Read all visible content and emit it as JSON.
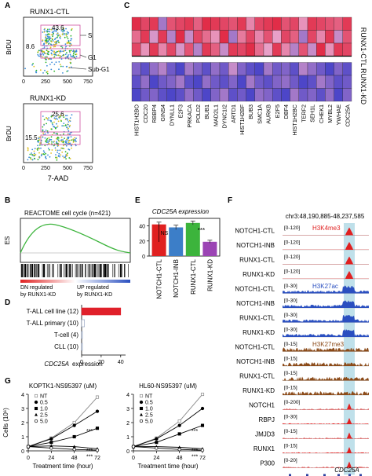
{
  "panels": {
    "A": {
      "letter": "A",
      "top_title": "RUNX1-CTL",
      "bottom_title": "RUNX1-KD",
      "ylabel": "BrDU",
      "xlabel": "7-AAD",
      "top_gates": {
        "s_pct": "43.6",
        "g1_pct": "8.6"
      },
      "bottom_gates": {
        "s_pct": "25.6",
        "g1_pct": "15.5"
      },
      "phase_labels": [
        "S",
        "G1",
        "Sub-G1"
      ],
      "xticks": [
        "0",
        "250",
        "500",
        "750"
      ]
    },
    "B": {
      "letter": "B",
      "title": "REACTOME cell cycle (n=421)",
      "ylabel": "ES",
      "left_label": [
        "DN regulated",
        "by RUNX1-KD"
      ],
      "right_label": [
        "UP regulated",
        "by RUNX1-KD"
      ]
    },
    "C": {
      "letter": "C",
      "genes": [
        "HIST1H2BO",
        "CDC20",
        "RBBP4",
        "GINS4",
        "DYNLL1",
        "E2F3",
        "PRKACA",
        "POLD2",
        "BUB1",
        "MAD2L1",
        "DYNC1I2",
        "ARTD1",
        "HIST1H2BF",
        "BUB3",
        "SMC1A",
        "AURKB",
        "E2F5",
        "DBF4",
        "HIST1H2BC",
        "TERF2",
        "SEH1L",
        "CHEK1",
        "MYBL2",
        "YWHAE",
        "CDC25A"
      ],
      "row_groups": [
        "RUNX1-CTL",
        "RUNX1-KD"
      ],
      "colors": {
        "high": "#e0203a",
        "mid": "#e8a0c8",
        "low": "#3c3cc8"
      },
      "values": [
        [
          0.95,
          0.85,
          0.9,
          0.3,
          0.8,
          0.85,
          0.9,
          0.75,
          0.95,
          0.9,
          0.85,
          0.8,
          0.9,
          0.6,
          0.85,
          0.9,
          0.95,
          0.8,
          0.85,
          0.55,
          0.9,
          0.85,
          0.8,
          0.75,
          0.9
        ],
        [
          0.7,
          0.9,
          0.45,
          0.9,
          0.35,
          0.95,
          0.4,
          0.85,
          0.7,
          0.55,
          0.95,
          0.3,
          0.65,
          0.85,
          0.6,
          0.8,
          0.5,
          0.85,
          0.75,
          0.3,
          0.85,
          0.6,
          0.9,
          0.4,
          0.8
        ],
        [
          0.85,
          0.55,
          0.9,
          0.6,
          0.85,
          0.45,
          0.8,
          0.35,
          0.9,
          0.75,
          0.4,
          0.9,
          0.85,
          0.95,
          0.7,
          0.5,
          0.9,
          0.6,
          0.35,
          0.8,
          0.4,
          0.95,
          0.55,
          0.9,
          0.85
        ],
        [
          0.2,
          0.1,
          0.25,
          0.35,
          0.15,
          0.05,
          0.3,
          0.2,
          0.1,
          0.25,
          0.15,
          0.4,
          0.2,
          0.1,
          0.05,
          0.3,
          0.15,
          0.2,
          0.1,
          0.35,
          0.25,
          0.15,
          0.05,
          0.2,
          0.1
        ],
        [
          0.1,
          0.25,
          0.05,
          0.15,
          0.2,
          0.3,
          0.1,
          0.05,
          0.25,
          0.15,
          0.1,
          0.2,
          0.05,
          0.3,
          0.15,
          0.1,
          0.2,
          0.25,
          0.15,
          0.05,
          0.1,
          0.3,
          0.2,
          0.1,
          0.15
        ],
        [
          0.05,
          0.15,
          0.2,
          0.1,
          0.05,
          0.1,
          0.25,
          0.15,
          0.05,
          0.2,
          0.3,
          0.1,
          0.15,
          0.05,
          0.25,
          0.2,
          0.1,
          0.05,
          0.3,
          0.15,
          0.2,
          0.1,
          0.25,
          0.05,
          0.2
        ]
      ]
    },
    "D": {
      "letter": "D",
      "xlabel": [
        "CDC25A",
        "expression"
      ],
      "categories": [
        "T-ALL cell line (12)",
        "T-ALL primary (10)",
        "T-cell (4)",
        "CLL (10)"
      ],
      "values": [
        40,
        3,
        0.8,
        0.5
      ],
      "xticks": [
        "0",
        "20",
        "40"
      ],
      "xlim": [
        0,
        45
      ],
      "bar_color": "#e0202a"
    },
    "E": {
      "letter": "E",
      "title": "CDC25A expression",
      "categories": [
        "NOTCH1-CTL",
        "NOTCH1-INB",
        "RUNX1-CTL",
        "RUNX1-KD"
      ],
      "values": [
        42,
        38,
        44,
        19
      ],
      "errors": [
        3,
        3,
        2.5,
        2
      ],
      "colors": [
        "#e02020",
        "#3c7ec8",
        "#3cb43c",
        "#9b44b4"
      ],
      "ylim": [
        0,
        50
      ],
      "yticks": [
        "0",
        "20",
        "40"
      ],
      "annotations": [
        "NS",
        "***"
      ]
    },
    "F": {
      "letter": "F",
      "locus": "chr3:48,190,885-48,237,585",
      "gene": "CDC25A",
      "tracks": [
        {
          "label": "NOTCH1-CTL",
          "range": "[0-120]",
          "mark": "H3K4me3",
          "color": "#e02020",
          "group": 0
        },
        {
          "label": "NOTCH1-INB",
          "range": "[0-120]",
          "mark": "",
          "color": "#e02020",
          "group": 0
        },
        {
          "label": "RUNX1-CTL",
          "range": "[0-120]",
          "mark": "",
          "color": "#e02020",
          "group": 0
        },
        {
          "label": "RUNX1-KD",
          "range": "[0-120]",
          "mark": "",
          "color": "#e02020",
          "group": 0
        },
        {
          "label": "NOTCH1-CTL",
          "range": "[0-30]",
          "mark": "H3K27ac",
          "color": "#2a4fc0",
          "group": 1
        },
        {
          "label": "NOTCH1-INB",
          "range": "[0-30]",
          "mark": "",
          "color": "#2a4fc0",
          "group": 1
        },
        {
          "label": "RUNX1-CTL",
          "range": "[0-30]",
          "mark": "",
          "color": "#2a4fc0",
          "group": 1
        },
        {
          "label": "RUNX1-KD",
          "range": "[0-30]",
          "mark": "",
          "color": "#2a4fc0",
          "group": 1
        },
        {
          "label": "NOTCH1-CTL",
          "range": "[0-15]",
          "mark": "H3K27me3",
          "color": "#8b4a18",
          "group": 2
        },
        {
          "label": "NOTCH1-INB",
          "range": "[0-15]",
          "mark": "",
          "color": "#8b4a18",
          "group": 2
        },
        {
          "label": "RUNX1-CTL",
          "range": "[0-15]",
          "mark": "",
          "color": "#8b4a18",
          "group": 2
        },
        {
          "label": "RUNX1-KD",
          "range": "[0-15]",
          "mark": "",
          "color": "#8b4a18",
          "group": 2
        },
        {
          "label": "NOTCH1",
          "range": "[0-200]",
          "mark": "",
          "color": "#e02020",
          "group": 3
        },
        {
          "label": "RBPJ",
          "range": "[0-30]",
          "mark": "",
          "color": "#e02020",
          "group": 3
        },
        {
          "label": "JMJD3",
          "range": "[0-15]",
          "mark": "",
          "color": "#e02020",
          "group": 3
        },
        {
          "label": "RUNX1",
          "range": "[0-15]",
          "mark": "",
          "color": "#e02020",
          "group": 3
        },
        {
          "label": "P300",
          "range": "[0-20]",
          "mark": "",
          "color": "#e02020",
          "group": 3
        }
      ],
      "highlight_color": "#bfe0ea"
    },
    "G": {
      "letter": "G",
      "ylabel": "Cells (10⁶)",
      "xlabel": "Treatment time (hour)",
      "xticks": [
        "0",
        "24",
        "48",
        "72"
      ],
      "yticks": [
        "0",
        "1",
        "2",
        "3",
        "4"
      ],
      "legend": [
        "NT",
        "0.5",
        "1.0",
        "2.5",
        "5.0"
      ],
      "stars": "***",
      "charts": [
        {
          "title": "KOPTK1-NS95397 (uM)",
          "x": [
            0,
            24,
            48,
            72
          ],
          "series": [
            {
              "name": "NT",
              "values": [
                0.3,
                0.9,
                2.0,
                3.8
              ]
            },
            {
              "name": "0.5",
              "values": [
                0.3,
                0.85,
                1.8,
                2.8
              ]
            },
            {
              "name": "1.0",
              "values": [
                0.3,
                0.6,
                1.0,
                1.6
              ]
            },
            {
              "name": "2.5",
              "values": [
                0.3,
                0.35,
                0.3,
                0.15
              ]
            },
            {
              "name": "5.0",
              "values": [
                0.3,
                0.2,
                0.1,
                0.05
              ]
            }
          ]
        },
        {
          "title": "HL60-NS95397 (uM)",
          "x": [
            0,
            24,
            48,
            72
          ],
          "series": [
            {
              "name": "NT",
              "values": [
                0.3,
                0.9,
                2.1,
                4.0
              ]
            },
            {
              "name": "0.5",
              "values": [
                0.3,
                0.85,
                1.8,
                3.0
              ]
            },
            {
              "name": "1.0",
              "values": [
                0.3,
                0.6,
                1.2,
                1.8
              ]
            },
            {
              "name": "2.5",
              "values": [
                0.3,
                0.3,
                0.25,
                0.15
              ]
            },
            {
              "name": "5.0",
              "values": [
                0.3,
                0.2,
                0.1,
                0.05
              ]
            }
          ]
        }
      ]
    }
  }
}
